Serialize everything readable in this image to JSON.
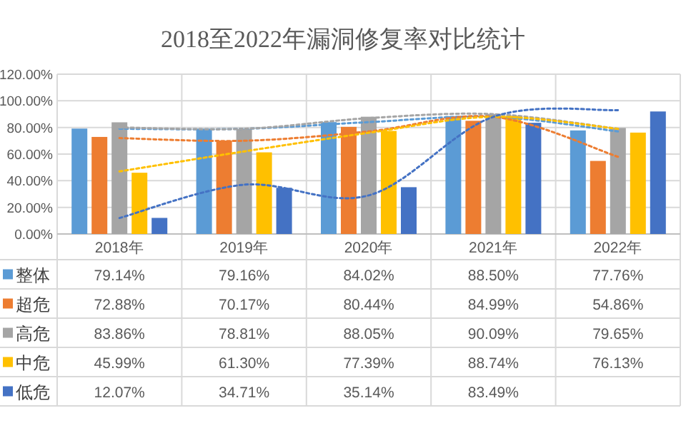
{
  "chart_data": {
    "type": "bar",
    "title": "2018至2022年漏洞修复率对比统计",
    "categories": [
      "2018年",
      "2019年",
      "2020年",
      "2021年",
      "2022年"
    ],
    "ylim": [
      0,
      120
    ],
    "yticks": [
      {
        "value": 0,
        "label": "0.00%"
      },
      {
        "value": 20,
        "label": "20.00%"
      },
      {
        "value": 40,
        "label": "40.00%"
      },
      {
        "value": 60,
        "label": "60.00%"
      },
      {
        "value": 80,
        "label": "80.00%"
      },
      {
        "value": 100,
        "label": "100.00%"
      },
      {
        "value": 120,
        "label": "120.00%"
      }
    ],
    "grid": "y",
    "legend": "bottom left",
    "series": [
      {
        "name": "整体",
        "color": "#5b9bd5",
        "values": [
          79.14,
          79.16,
          84.02,
          88.5,
          77.76
        ],
        "value_labels": [
          "79.14%",
          "79.16%",
          "84.02%",
          "88.50%",
          "77.76%"
        ]
      },
      {
        "name": "超危",
        "color": "#ed7d31",
        "values": [
          72.88,
          70.17,
          80.44,
          84.99,
          54.86
        ],
        "value_labels": [
          "72.88%",
          "70.17%",
          "80.44%",
          "84.99%",
          "54.86%"
        ]
      },
      {
        "name": "高危",
        "color": "#a5a5a5",
        "values": [
          83.86,
          78.81,
          88.05,
          90.09,
          79.65
        ],
        "value_labels": [
          "83.86%",
          "78.81%",
          "88.05%",
          "90.09%",
          "79.65%"
        ]
      },
      {
        "name": "中危",
        "color": "#ffc000",
        "values": [
          45.99,
          61.3,
          77.39,
          88.74,
          76.13
        ],
        "value_labels": [
          "45.99%",
          "61.30%",
          "77.39%",
          "88.74%",
          "76.13%"
        ]
      },
      {
        "name": "低危",
        "color": "#4472c4",
        "values": [
          12.07,
          34.71,
          35.14,
          83.49,
          92
        ],
        "value_labels": [
          "12.07%",
          "34.71%",
          "35.14%",
          "83.49%",
          null
        ]
      },
      {
        "type": "line",
        "line_style": "dotted",
        "color": "#5b9bd5",
        "values": [
          79,
          79,
          84,
          88,
          77
        ]
      },
      {
        "type": "line",
        "line_style": "dotted",
        "color": "#ed7d31",
        "values": [
          72,
          70,
          77,
          88,
          58
        ]
      },
      {
        "type": "line",
        "line_style": "dotted",
        "color": "#a5a5a5",
        "values": [
          80,
          79,
          87,
          90,
          79
        ]
      },
      {
        "type": "line",
        "line_style": "dotted",
        "color": "#ffc000",
        "values": [
          47,
          62,
          76,
          88,
          79
        ]
      },
      {
        "type": "line",
        "line_style": "dotted",
        "color": "#4472c4",
        "values": [
          12,
          37,
          29,
          88,
          93
        ]
      }
    ]
  }
}
